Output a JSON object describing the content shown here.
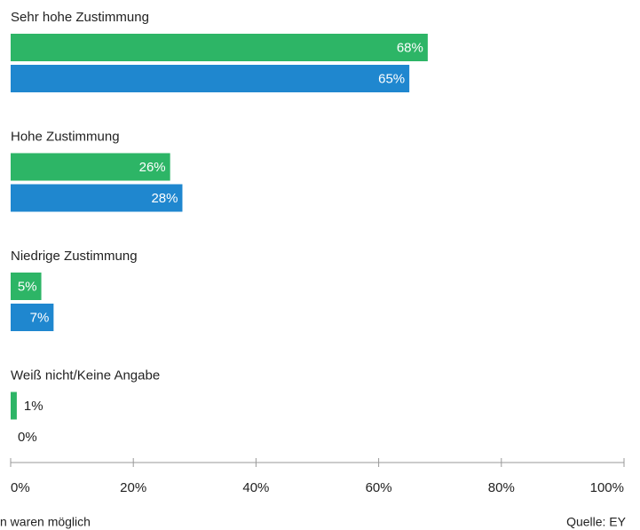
{
  "chart_data": {
    "type": "bar",
    "orientation": "horizontal",
    "categories": [
      "Sehr hohe Zustimmung",
      "Hohe Zustimmung",
      "Niedrige Zustimmung",
      "Weiß nicht/Keine Angabe"
    ],
    "series": [
      {
        "color": "#2db566",
        "values": [
          68,
          26,
          5,
          1
        ],
        "value_labels": [
          "68%",
          "26%",
          "5%",
          "1%"
        ]
      },
      {
        "color": "#1f87cf",
        "values": [
          65,
          28,
          7,
          0
        ],
        "value_labels": [
          "65%",
          "28%",
          "7%",
          "0%"
        ]
      }
    ],
    "xlim": [
      0,
      100
    ],
    "xticks": [
      {
        "value": 0,
        "label": "0%"
      },
      {
        "value": 20,
        "label": "20%"
      },
      {
        "value": 40,
        "label": "40%"
      },
      {
        "value": 60,
        "label": "60%"
      },
      {
        "value": 80,
        "label": "80%"
      },
      {
        "value": 100,
        "label": "100%"
      }
    ],
    "footnote": "n waren möglich",
    "source": "Quelle: EY"
  }
}
